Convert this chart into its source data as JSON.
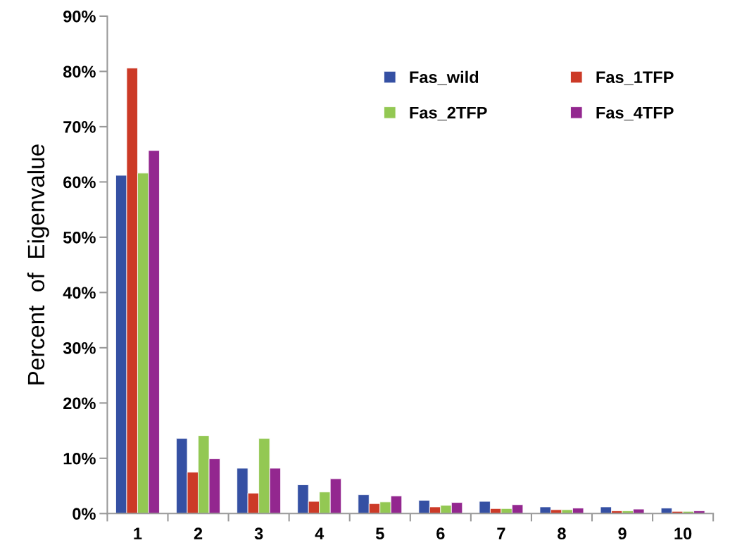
{
  "chart_data": {
    "type": "bar",
    "ylabel": "Percent  of  Eigenvalue",
    "categories": [
      "1",
      "2",
      "3",
      "4",
      "5",
      "6",
      "7",
      "8",
      "9",
      "10"
    ],
    "series": [
      {
        "name": "Fas_wild",
        "color": "#3550a3",
        "values": [
          61.2,
          13.6,
          8.2,
          5.2,
          3.4,
          2.4,
          2.2,
          1.2,
          1.2,
          1.0
        ]
      },
      {
        "name": "Fas_1TFP",
        "color": "#cc3a27",
        "values": [
          80.6,
          7.5,
          3.7,
          2.2,
          1.8,
          1.2,
          0.9,
          0.7,
          0.5,
          0.4
        ]
      },
      {
        "name": "Fas_2TFP",
        "color": "#93c853",
        "values": [
          61.6,
          14.1,
          13.6,
          3.9,
          2.1,
          1.5,
          0.9,
          0.7,
          0.5,
          0.4
        ]
      },
      {
        "name": "Fas_4TFP",
        "color": "#93278f",
        "values": [
          65.7,
          9.9,
          8.2,
          6.3,
          3.2,
          2.0,
          1.6,
          1.0,
          0.8,
          0.5
        ]
      }
    ],
    "ylim": [
      0,
      90
    ],
    "yticks": [
      {
        "value": 0,
        "label": "0%"
      },
      {
        "value": 10,
        "label": "10%"
      },
      {
        "value": 20,
        "label": "20%"
      },
      {
        "value": 30,
        "label": "30%"
      },
      {
        "value": 40,
        "label": "40%"
      },
      {
        "value": 50,
        "label": "50%"
      },
      {
        "value": 60,
        "label": "60%"
      },
      {
        "value": 70,
        "label": "70%"
      },
      {
        "value": 80,
        "label": "80%"
      },
      {
        "value": 90,
        "label": "90%"
      }
    ],
    "grid": false,
    "legend": "top right"
  }
}
